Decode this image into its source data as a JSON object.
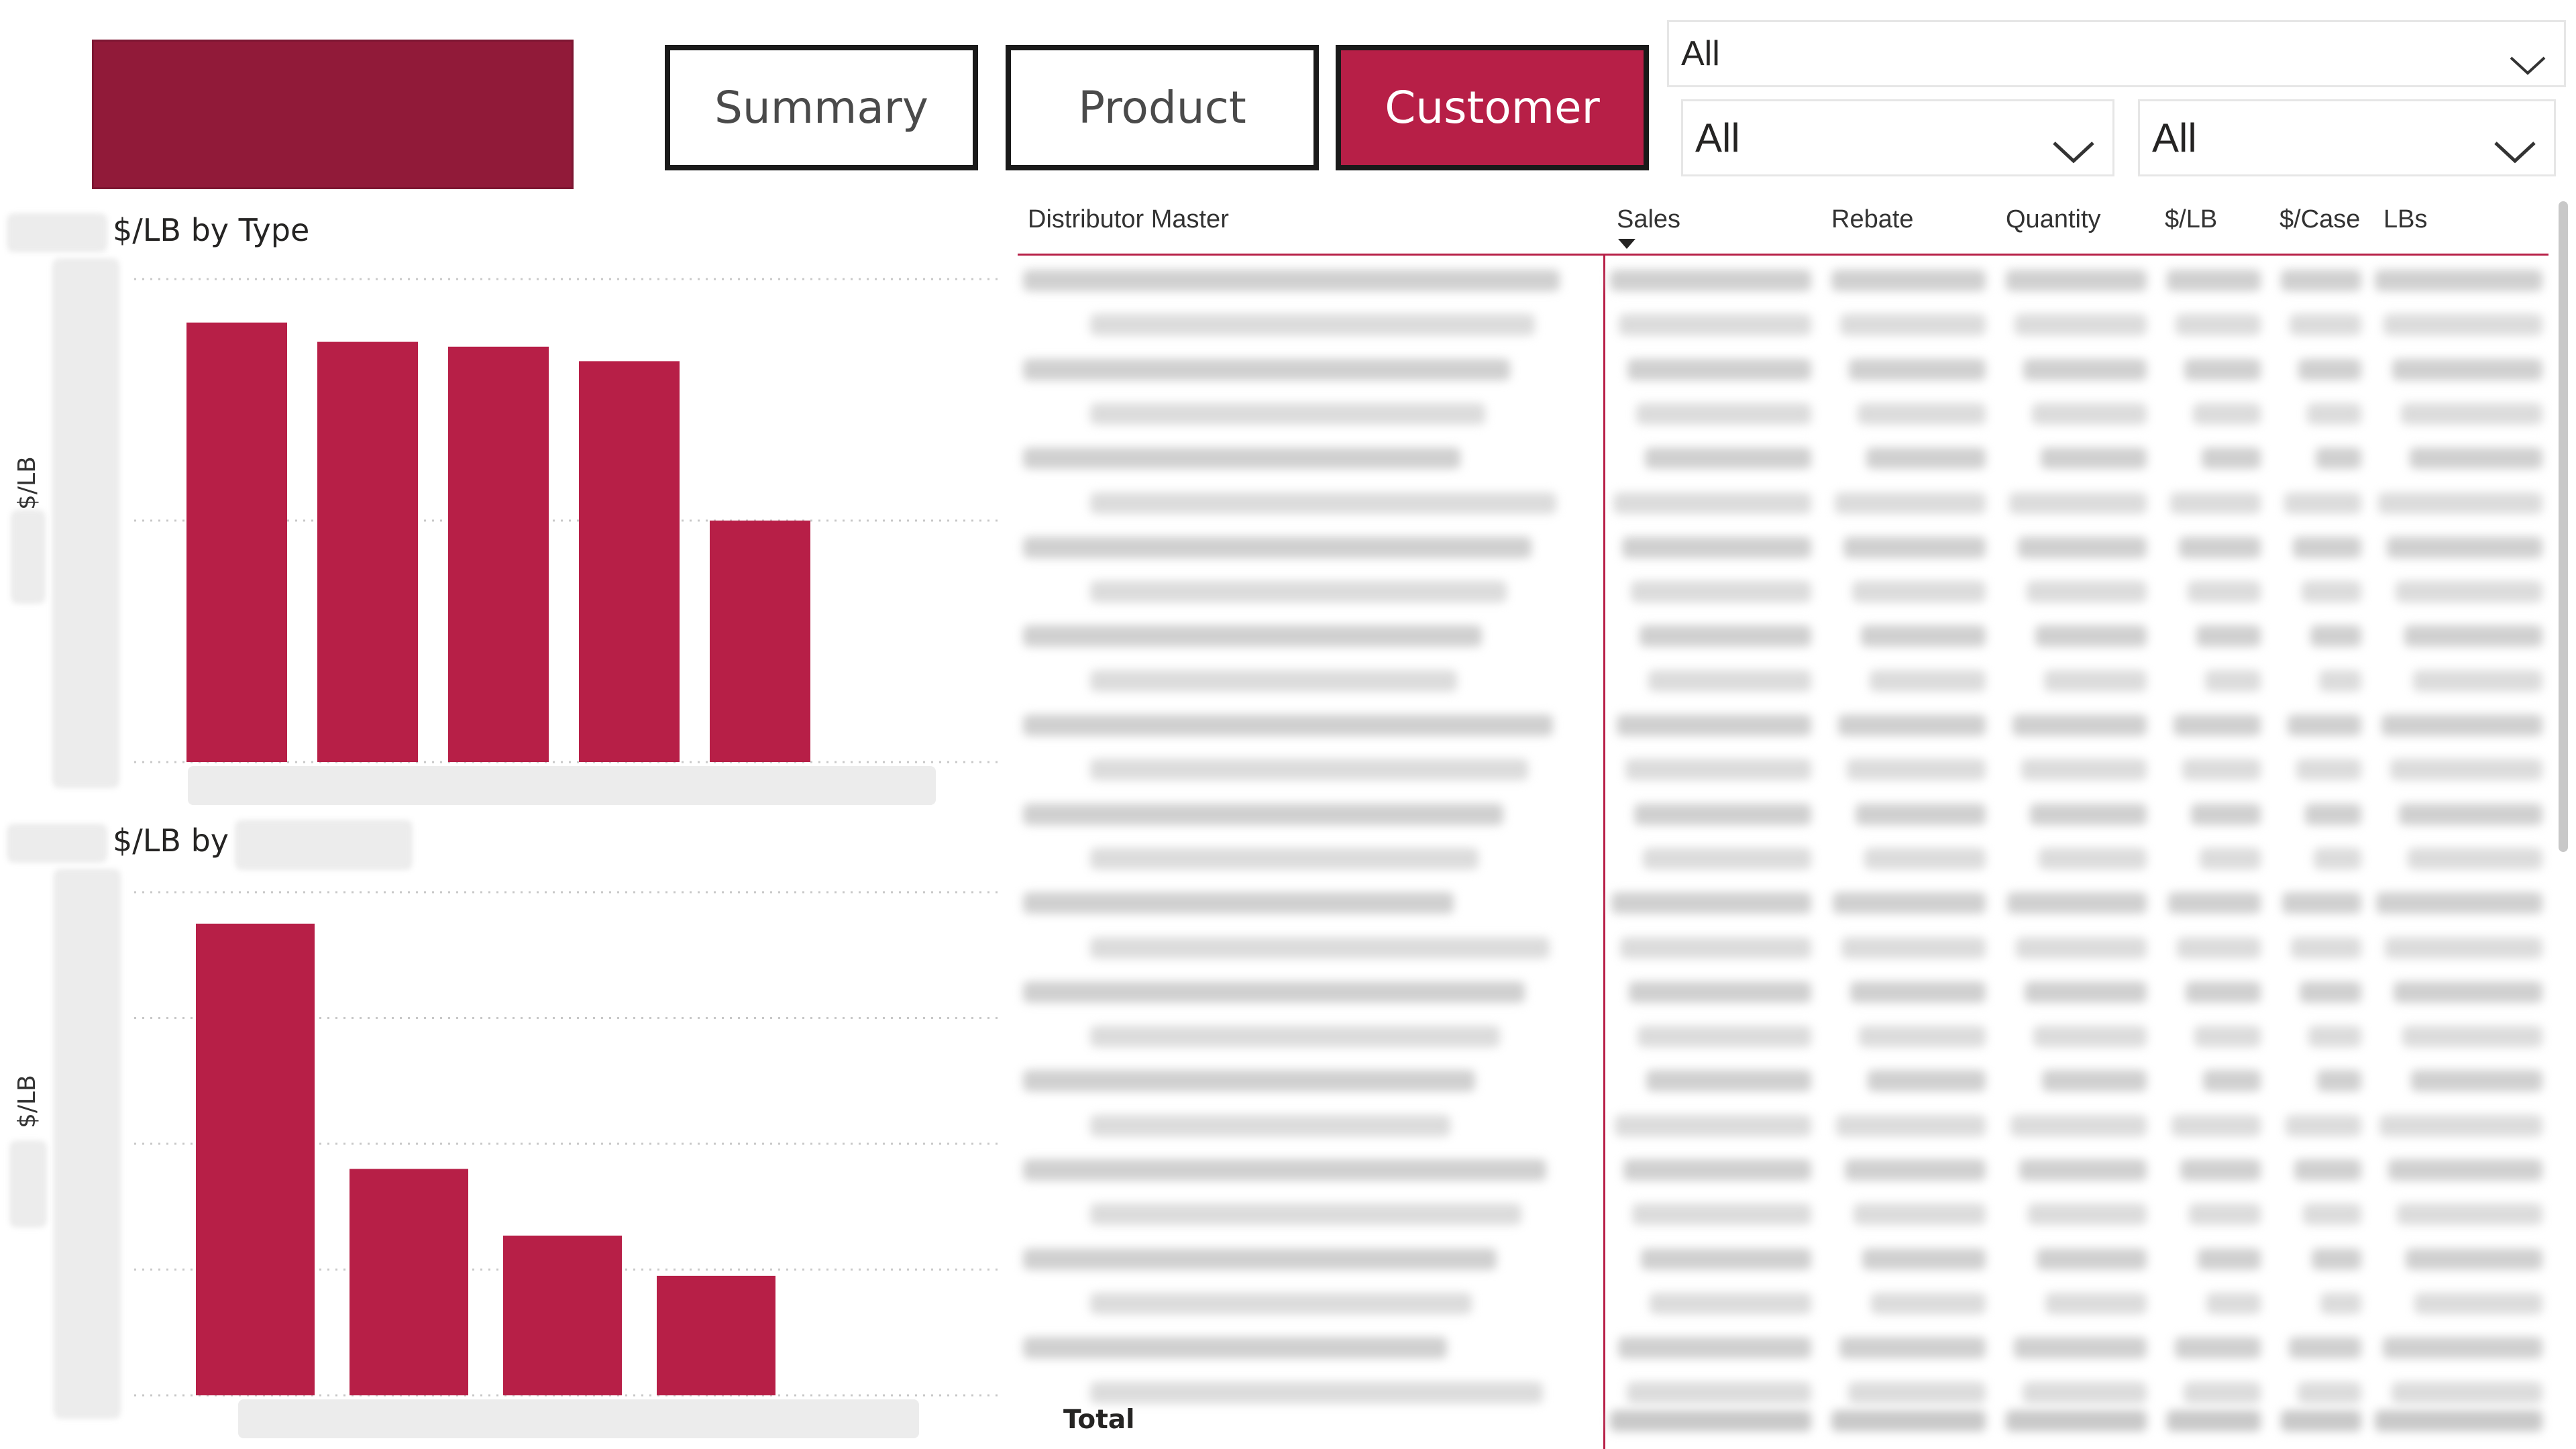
{
  "nav": {
    "summary_label": "Summary",
    "product_label": "Product",
    "customer_label": "Customer",
    "active": "customer"
  },
  "slicers": {
    "top_value": "All",
    "left_value": "All",
    "right_value": "All"
  },
  "colors": {
    "accent": "#b71f47",
    "logo": "#911a39",
    "border": "#1a1a1a"
  },
  "chart1": {
    "title": "$/LB by Type",
    "ylabel": "$/LB"
  },
  "chart2": {
    "title": "$/LB by",
    "ylabel": "$/LB"
  },
  "chart_data": [
    {
      "type": "bar",
      "title": "$/LB by Type",
      "ylabel": "$/LB",
      "categories": [
        "",
        "",
        "",
        "",
        ""
      ],
      "values": [
        0.91,
        0.87,
        0.86,
        0.83,
        0.5
      ],
      "ylim": [
        0,
        1.0
      ],
      "grid": true,
      "color": "#b71f47"
    },
    {
      "type": "bar",
      "title": "$/LB by",
      "ylabel": "$/LB",
      "categories": [
        "",
        "",
        "",
        ""
      ],
      "values": [
        3.75,
        1.8,
        1.27,
        0.95
      ],
      "ylim": [
        0,
        4.0
      ],
      "grid": true,
      "color": "#b71f47"
    }
  ],
  "table": {
    "columns": [
      "Distributor Master",
      "Sales",
      "Rebate",
      "Quantity",
      "$/LB",
      "$/Case",
      "LBs"
    ],
    "sort_column": "Sales",
    "total_label": "Total"
  }
}
